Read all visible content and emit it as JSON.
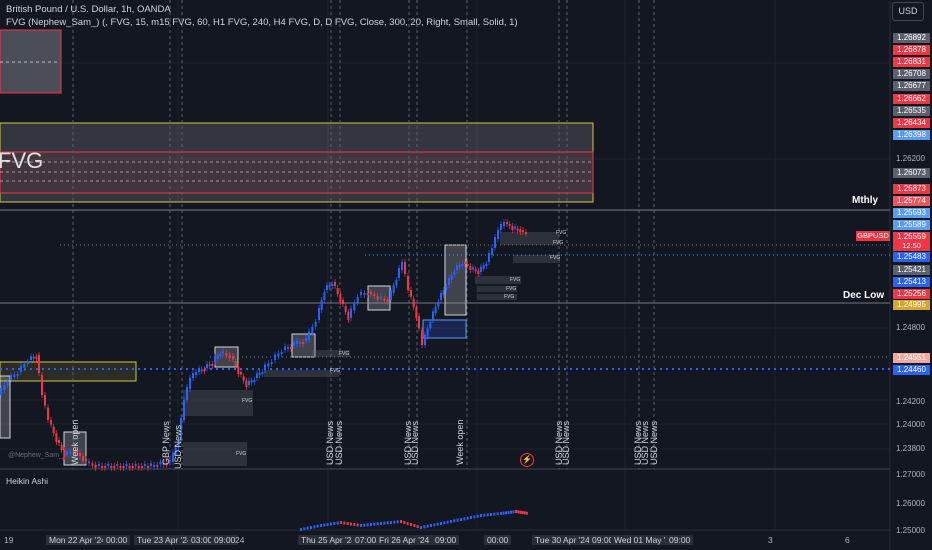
{
  "header": {
    "symbol_line": "British Pound / U.S. Dollar, 1h, OANDA",
    "indicator_line": "FVG (Nephew_Sam_) (, FVG, 15, m15 FVG, 60, H1 FVG, 240, H4 FVG, D, D FVG, Close, 300, 20, Right, Small, Solid, 1)"
  },
  "currency_button": "USD",
  "price_labels": [
    {
      "text": "1.26892",
      "bg": "#5d606b"
    },
    {
      "text": "1.26878",
      "bg": "#f23645"
    },
    {
      "text": "1.26831",
      "bg": "#f23645"
    },
    {
      "text": "1.26708",
      "bg": "#5d606b"
    },
    {
      "text": "1.26677",
      "bg": "#5d606b"
    },
    {
      "text": "1.26662",
      "bg": "#f23645"
    },
    {
      "text": "1.26535",
      "bg": "#5d606b"
    },
    {
      "text": "1.26434",
      "bg": "#f23645"
    },
    {
      "text": "1.26398",
      "bg": "#5b9cf6"
    },
    {
      "text": "1.26073",
      "bg": "#5d606b"
    },
    {
      "text": "1.25873",
      "bg": "#f23645"
    },
    {
      "text": "1.25774",
      "bg": "#f7525f"
    },
    {
      "text": "1.25593",
      "bg": "#5b9cf6"
    },
    {
      "text": "1.25589",
      "bg": "#5b9cf6"
    },
    {
      "text": "1.25559",
      "bg": "#f23645"
    },
    {
      "text": "1.25483",
      "bg": "#2962ff"
    },
    {
      "text": "1.25421",
      "bg": "#5d606b"
    },
    {
      "text": "1.25413",
      "bg": "#2962ff"
    },
    {
      "text": "1.25256",
      "bg": "#f23645"
    },
    {
      "text": "1.24995",
      "bg": "#d4a72c"
    },
    {
      "text": "1.24551",
      "bg": "#f7a7a0"
    },
    {
      "text": "1.24460",
      "bg": "#2962ff"
    }
  ],
  "axis_ticks": [
    "1.26200",
    "1.24800",
    "1.24200",
    "1.24000",
    "1.23800",
    "1.27000",
    "1.26000",
    "1.25000"
  ],
  "level_labels": {
    "monthly": "Mthly",
    "dec_low": "Dec Low"
  },
  "symbol_tag": {
    "symbol": "GBPUSD",
    "time": "12:50"
  },
  "fvg_big_label": "FVG",
  "fvg_small_label": "FVG",
  "news_labels": [
    "GBP News",
    "USD News",
    "USD News",
    "USD News",
    "USD News",
    "USD News",
    "USD News",
    "USD News"
  ],
  "week_open_labels": [
    "Week open",
    "Week open"
  ],
  "watermark": "@Nephew_Sam_",
  "subpane_title": "Heikin Ashi",
  "x_axis": [
    {
      "text": "19",
      "hl": false
    },
    {
      "text": "Mon 22 Apr '24",
      "hl": true
    },
    {
      "text": "00:00",
      "hl": true
    },
    {
      "text": "Tue 23 Apr '24",
      "hl": true
    },
    {
      "text": "03:00",
      "hl": true
    },
    {
      "text": "09:00",
      "hl": true
    },
    {
      "text": "24",
      "hl": false
    },
    {
      "text": "Thu 25 Apr '24",
      "hl": true
    },
    {
      "text": "07:00",
      "hl": true
    },
    {
      "text": "Fri 26 Apr '24",
      "hl": true
    },
    {
      "text": "09:00",
      "hl": true
    },
    {
      "text": "00:00",
      "hl": true
    },
    {
      "text": "Tue 30 Apr '24",
      "hl": true
    },
    {
      "text": "09:00",
      "hl": true
    },
    {
      "text": "Wed 01 May '24",
      "hl": true
    },
    {
      "text": "09:00",
      "hl": true
    },
    {
      "text": "3",
      "hl": false
    },
    {
      "text": "6",
      "hl": false
    }
  ],
  "colors": {
    "background": "#131722",
    "up": "#2962ff",
    "down": "#f23645",
    "grid": "#1e222d"
  }
}
